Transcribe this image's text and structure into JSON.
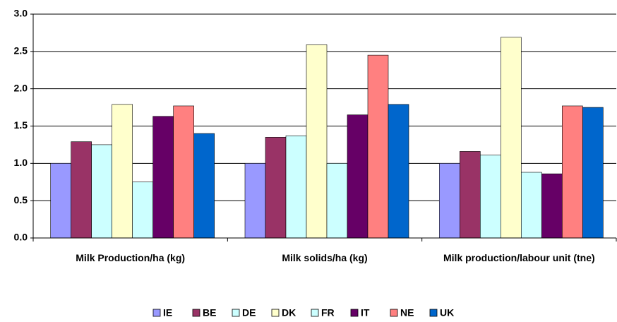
{
  "chart_data": {
    "type": "bar",
    "categories": [
      "Milk Production/ha (kg)",
      "Milk solids/ha (kg)",
      "Milk production/labour unit (tne)"
    ],
    "series": [
      {
        "name": "IE",
        "color": "#9999ff",
        "values": [
          1.0,
          1.0,
          1.0
        ]
      },
      {
        "name": "BE",
        "color": "#993366",
        "values": [
          1.29,
          1.35,
          1.16
        ]
      },
      {
        "name": "DE",
        "color": "#ccffff",
        "values": [
          1.25,
          1.37,
          1.11
        ]
      },
      {
        "name": "DK",
        "color": "#ffffcc",
        "values": [
          1.79,
          2.59,
          2.69
        ]
      },
      {
        "name": "FR",
        "color": "#ccffff",
        "values": [
          0.75,
          1.0,
          0.88
        ]
      },
      {
        "name": "IT",
        "color": "#660066",
        "values": [
          1.63,
          1.65,
          0.86
        ]
      },
      {
        "name": "NE",
        "color": "#ff8080",
        "values": [
          1.77,
          2.45,
          1.77
        ]
      },
      {
        "name": "UK",
        "color": "#0066cc",
        "values": [
          1.4,
          1.79,
          1.75
        ]
      }
    ],
    "ylim": [
      0,
      3
    ],
    "yticks": [
      {
        "value": 0,
        "label": "0.0"
      },
      {
        "value": 0.5,
        "label": "0.5"
      },
      {
        "value": 1,
        "label": "1.0"
      },
      {
        "value": 1.5,
        "label": "1.5"
      },
      {
        "value": 2,
        "label": "2.0"
      },
      {
        "value": 2.5,
        "label": "2.5"
      },
      {
        "value": 3,
        "label": "3.0"
      }
    ],
    "grid": true,
    "legend": "bottom"
  }
}
